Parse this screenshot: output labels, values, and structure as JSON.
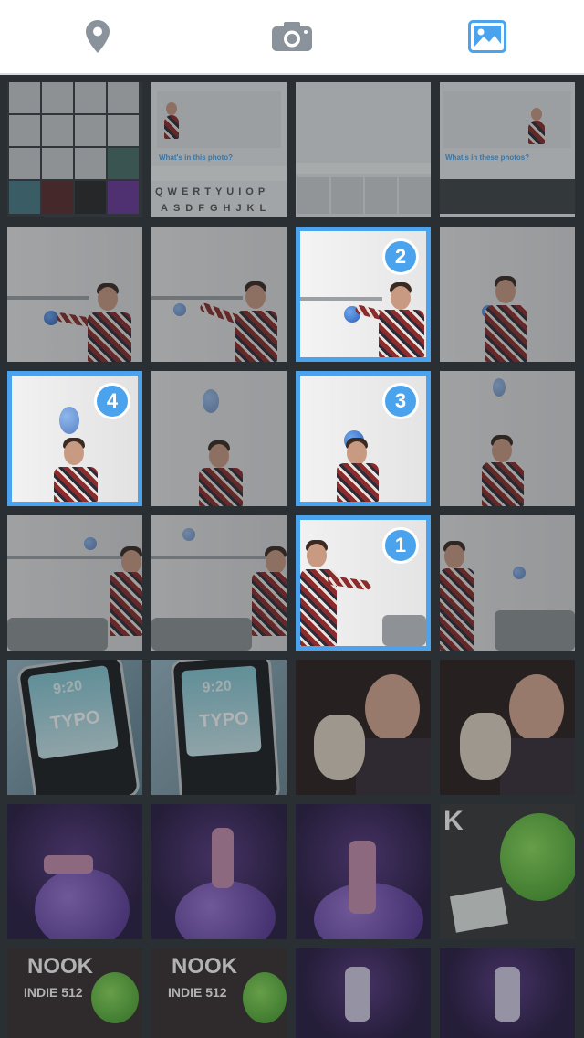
{
  "toolbar": {
    "tabs": [
      {
        "name": "location",
        "icon": "map-pin-icon",
        "active": false
      },
      {
        "name": "camera",
        "icon": "camera-icon",
        "active": false
      },
      {
        "name": "photos",
        "icon": "photo-gallery-icon",
        "active": true
      }
    ],
    "inactive_color": "#8a939b",
    "active_color": "#4aa3ec"
  },
  "grid": {
    "selection_color": "#4aa3ec",
    "selected": [
      {
        "row": 2,
        "col": 3,
        "order": "2"
      },
      {
        "row": 3,
        "col": 1,
        "order": "4"
      },
      {
        "row": 3,
        "col": 3,
        "order": "3"
      },
      {
        "row": 4,
        "col": 3,
        "order": "1"
      }
    ],
    "screenshot_text": {
      "prompt_a": "What's in this photo?",
      "prompt_b": "What's in these photos?",
      "keyboard_row1": "QWERTYUIOP",
      "keyboard_row2": "ASDFGHJKL"
    },
    "posters": {
      "phone_brand": "TYPO",
      "phone_time": "9:20",
      "sign_a": "NOOK",
      "sign_b": "INDIE 512",
      "sign_c": "K"
    }
  }
}
